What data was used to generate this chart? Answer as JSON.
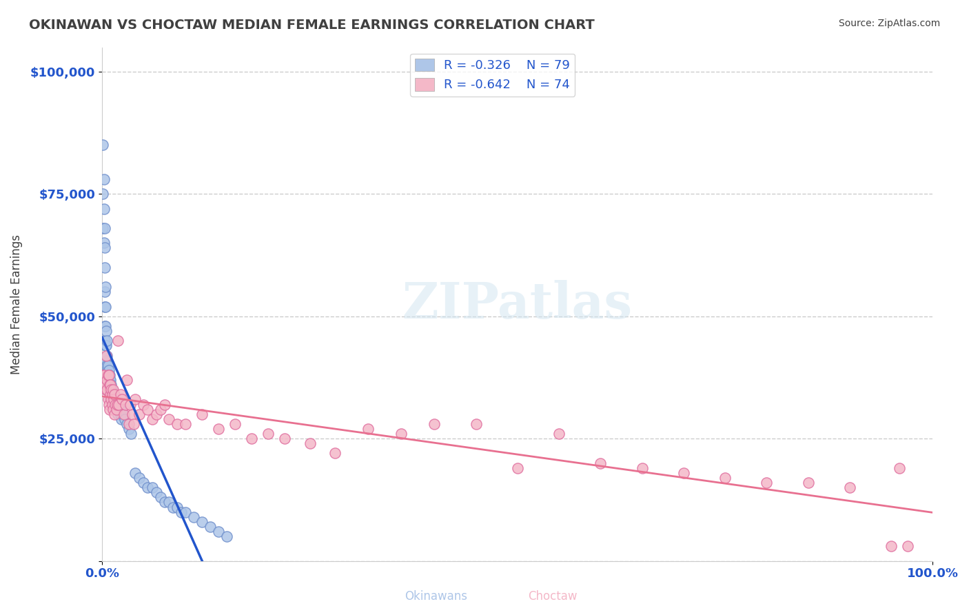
{
  "title": "OKINAWAN VS CHOCTAW MEDIAN FEMALE EARNINGS CORRELATION CHART",
  "source_text": "Source: ZipAtlas.com",
  "xlabel": "",
  "ylabel": "Median Female Earnings",
  "xlim": [
    0.0,
    1.0
  ],
  "ylim": [
    0,
    105000
  ],
  "yticks": [
    0,
    25000,
    50000,
    75000,
    100000
  ],
  "ytick_labels": [
    "",
    "$25,000",
    "$50,000",
    "$75,000",
    "$100,000"
  ],
  "xtick_labels": [
    "0.0%",
    "100.0%"
  ],
  "legend_entries": [
    {
      "color": "#aec6e8",
      "R": "-0.326",
      "N": "79",
      "label": "Okinawans"
    },
    {
      "color": "#f4b8c8",
      "R": "-0.642",
      "N": "74",
      "label": "Choctaw"
    }
  ],
  "blue_line_color": "#2255cc",
  "pink_line_color": "#e87090",
  "blue_scatter_color": "#aec6e8",
  "pink_scatter_color": "#f4b8c8",
  "scatter_edge_blue": "#7090cc",
  "scatter_edge_pink": "#e070a0",
  "watermark": "ZIPatlas",
  "background_color": "#ffffff",
  "grid_color": "#cccccc",
  "title_color": "#404040",
  "axis_label_color": "#404040",
  "tick_label_color": "#2255cc",
  "source_color": "#404040",
  "legend_text_color": "#2255cc",
  "blue_R": -0.326,
  "blue_N": 79,
  "pink_R": -0.642,
  "pink_N": 74,
  "blue_scatter_x": [
    0.001,
    0.001,
    0.001,
    0.002,
    0.002,
    0.002,
    0.003,
    0.003,
    0.003,
    0.003,
    0.003,
    0.003,
    0.003,
    0.004,
    0.004,
    0.004,
    0.004,
    0.004,
    0.005,
    0.005,
    0.005,
    0.005,
    0.005,
    0.006,
    0.006,
    0.006,
    0.006,
    0.006,
    0.007,
    0.007,
    0.007,
    0.008,
    0.008,
    0.008,
    0.009,
    0.009,
    0.01,
    0.01,
    0.01,
    0.011,
    0.011,
    0.012,
    0.012,
    0.013,
    0.013,
    0.014,
    0.015,
    0.015,
    0.016,
    0.017,
    0.018,
    0.019,
    0.02,
    0.021,
    0.022,
    0.023,
    0.025,
    0.027,
    0.03,
    0.032,
    0.035,
    0.04,
    0.045,
    0.05,
    0.055,
    0.06,
    0.065,
    0.07,
    0.075,
    0.08,
    0.085,
    0.09,
    0.095,
    0.1,
    0.11,
    0.12,
    0.13,
    0.14,
    0.15
  ],
  "blue_scatter_y": [
    85000,
    75000,
    68000,
    72000,
    65000,
    78000,
    68000,
    64000,
    60000,
    55000,
    52000,
    48000,
    45000,
    56000,
    52000,
    48000,
    44000,
    40000,
    47000,
    44000,
    41000,
    38000,
    36000,
    45000,
    42000,
    40000,
    38000,
    35000,
    40000,
    38000,
    36000,
    39000,
    37000,
    35000,
    38000,
    36000,
    37000,
    35000,
    33000,
    36000,
    34000,
    35000,
    33000,
    34000,
    32000,
    33000,
    32000,
    31000,
    33000,
    32000,
    31000,
    30000,
    32000,
    31000,
    30000,
    29000,
    30000,
    29000,
    28000,
    27000,
    26000,
    18000,
    17000,
    16000,
    15000,
    15000,
    14000,
    13000,
    12000,
    12000,
    11000,
    11000,
    10000,
    10000,
    9000,
    8000,
    7000,
    6000,
    5000
  ],
  "pink_scatter_x": [
    0.001,
    0.002,
    0.003,
    0.004,
    0.005,
    0.005,
    0.006,
    0.006,
    0.007,
    0.007,
    0.008,
    0.008,
    0.009,
    0.009,
    0.01,
    0.01,
    0.011,
    0.011,
    0.012,
    0.012,
    0.013,
    0.013,
    0.014,
    0.015,
    0.015,
    0.016,
    0.017,
    0.018,
    0.019,
    0.02,
    0.022,
    0.024,
    0.026,
    0.028,
    0.03,
    0.032,
    0.034,
    0.036,
    0.038,
    0.04,
    0.045,
    0.05,
    0.055,
    0.06,
    0.065,
    0.07,
    0.075,
    0.08,
    0.09,
    0.1,
    0.12,
    0.14,
    0.16,
    0.18,
    0.2,
    0.22,
    0.25,
    0.28,
    0.32,
    0.36,
    0.4,
    0.45,
    0.5,
    0.55,
    0.6,
    0.65,
    0.7,
    0.75,
    0.8,
    0.85,
    0.9,
    0.95,
    0.96,
    0.97
  ],
  "pink_scatter_y": [
    38000,
    38000,
    36000,
    35000,
    42000,
    36000,
    37000,
    35000,
    38000,
    33000,
    38000,
    32000,
    36000,
    31000,
    36000,
    34000,
    35000,
    33000,
    34000,
    32000,
    35000,
    31000,
    33000,
    34000,
    30000,
    32000,
    31000,
    32000,
    45000,
    32000,
    34000,
    33000,
    30000,
    32000,
    37000,
    28000,
    32000,
    30000,
    28000,
    33000,
    30000,
    32000,
    31000,
    29000,
    30000,
    31000,
    32000,
    29000,
    28000,
    28000,
    30000,
    27000,
    28000,
    25000,
    26000,
    25000,
    24000,
    22000,
    27000,
    26000,
    28000,
    28000,
    19000,
    26000,
    20000,
    19000,
    18000,
    17000,
    16000,
    16000,
    15000,
    3000,
    19000,
    3000
  ]
}
